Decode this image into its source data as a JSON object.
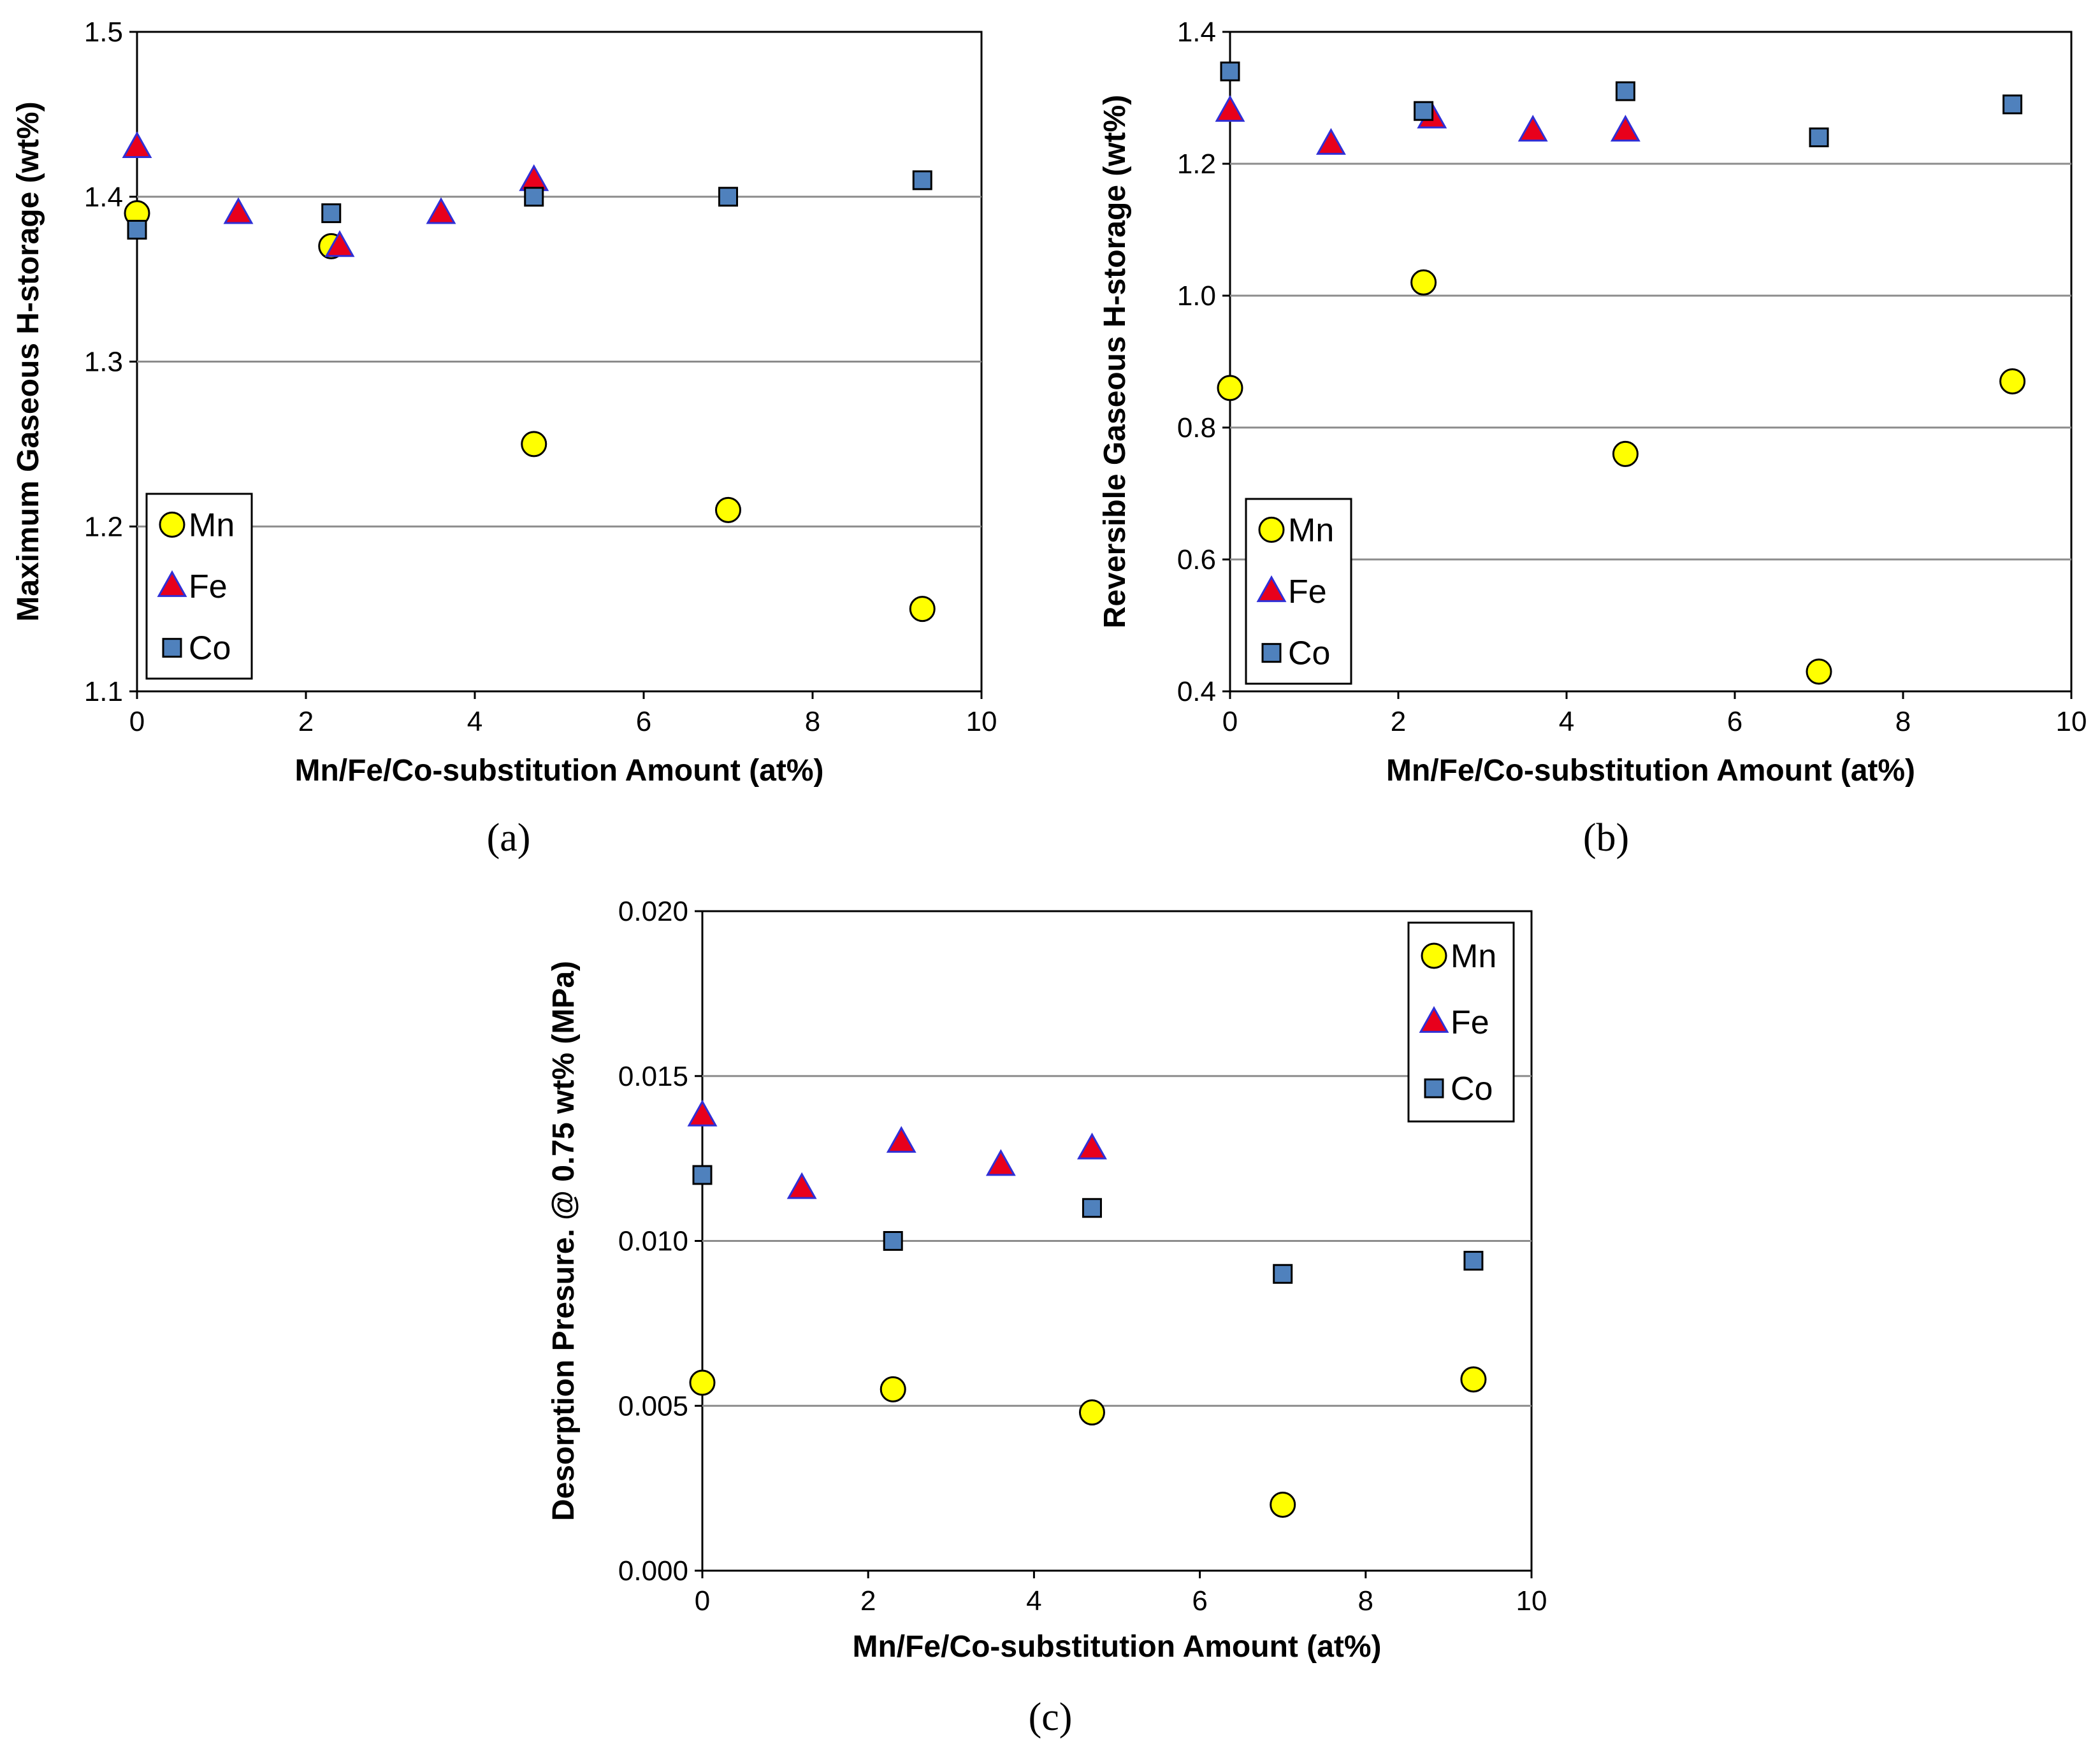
{
  "chart_data": [
    {
      "id": "a",
      "type": "scatter",
      "panel_label": "(a)",
      "xlabel": "Mn/Fe/Co-substitution Amount (at%)",
      "ylabel": "Maximum Gaseous H-storage (wt%)",
      "xlim": [
        0,
        10
      ],
      "ylim": [
        1.1,
        1.5
      ],
      "xticks": [
        "0",
        "2",
        "4",
        "6",
        "8",
        "10"
      ],
      "yticks": [
        "1.1",
        "1.2",
        "1.3",
        "1.4",
        "1.5"
      ],
      "grid": true,
      "legend_position": "bottom-left",
      "series": [
        {
          "name": "Mn",
          "marker": "circle",
          "x": [
            0,
            2.3,
            4.7,
            7.0,
            9.3
          ],
          "y": [
            1.39,
            1.37,
            1.25,
            1.21,
            1.15
          ]
        },
        {
          "name": "Fe",
          "marker": "triangle",
          "x": [
            0,
            1.2,
            2.4,
            3.6,
            4.7
          ],
          "y": [
            1.43,
            1.39,
            1.37,
            1.39,
            1.41
          ]
        },
        {
          "name": "Co",
          "marker": "square",
          "x": [
            0,
            2.3,
            4.7,
            7.0,
            9.3
          ],
          "y": [
            1.38,
            1.39,
            1.4,
            1.4,
            1.41
          ]
        }
      ]
    },
    {
      "id": "b",
      "type": "scatter",
      "panel_label": "(b)",
      "xlabel": "Mn/Fe/Co-substitution Amount (at%)",
      "ylabel": "Reversible Gaseous H-storage (wt%)",
      "xlim": [
        0,
        10
      ],
      "ylim": [
        0.4,
        1.4
      ],
      "xticks": [
        "0",
        "2",
        "4",
        "6",
        "8",
        "10"
      ],
      "yticks": [
        "0.4",
        "0.6",
        "0.8",
        "1.0",
        "1.2",
        "1.4"
      ],
      "grid": true,
      "legend_position": "bottom-left",
      "series": [
        {
          "name": "Mn",
          "marker": "circle",
          "x": [
            0,
            2.3,
            4.7,
            7.0,
            9.3
          ],
          "y": [
            0.86,
            1.02,
            0.76,
            0.43,
            0.87
          ]
        },
        {
          "name": "Fe",
          "marker": "triangle",
          "x": [
            0,
            1.2,
            2.4,
            3.6,
            4.7
          ],
          "y": [
            1.28,
            1.23,
            1.27,
            1.25,
            1.25
          ]
        },
        {
          "name": "Co",
          "marker": "square",
          "x": [
            0,
            2.3,
            4.7,
            7.0,
            9.3
          ],
          "y": [
            1.34,
            1.28,
            1.31,
            1.24,
            1.29
          ]
        }
      ]
    },
    {
      "id": "c",
      "type": "scatter",
      "panel_label": "(c)",
      "xlabel": "Mn/Fe/Co-substitution Amount (at%)",
      "ylabel": "Desorption Presure. @ 0.75 wt% (MPa)",
      "xlim": [
        0,
        10
      ],
      "ylim": [
        0.0,
        0.02
      ],
      "xticks": [
        "0",
        "2",
        "4",
        "6",
        "8",
        "10"
      ],
      "yticks": [
        "0.000",
        "0.005",
        "0.010",
        "0.015",
        "0.020"
      ],
      "grid": true,
      "legend_position": "top-right",
      "series": [
        {
          "name": "Mn",
          "marker": "circle",
          "x": [
            0,
            2.3,
            4.7,
            7.0,
            9.3
          ],
          "y": [
            0.0057,
            0.0055,
            0.0048,
            0.002,
            0.0058
          ]
        },
        {
          "name": "Fe",
          "marker": "triangle",
          "x": [
            0,
            1.2,
            2.4,
            3.6,
            4.7
          ],
          "y": [
            0.0138,
            0.0116,
            0.013,
            0.0123,
            0.0128
          ]
        },
        {
          "name": "Co",
          "marker": "square",
          "x": [
            0,
            2.3,
            4.7,
            7.0,
            9.3
          ],
          "y": [
            0.012,
            0.01,
            0.011,
            0.009,
            0.0094
          ]
        }
      ]
    }
  ],
  "colors": {
    "Mn_fill": "#ffff00",
    "Mn_stroke": "#000000",
    "Fe_fill": "#e8001c",
    "Fe_stroke": "#2f2fd6",
    "Co_fill": "#4f81bd",
    "Co_stroke": "#000000",
    "grid": "#8c8c8c"
  }
}
